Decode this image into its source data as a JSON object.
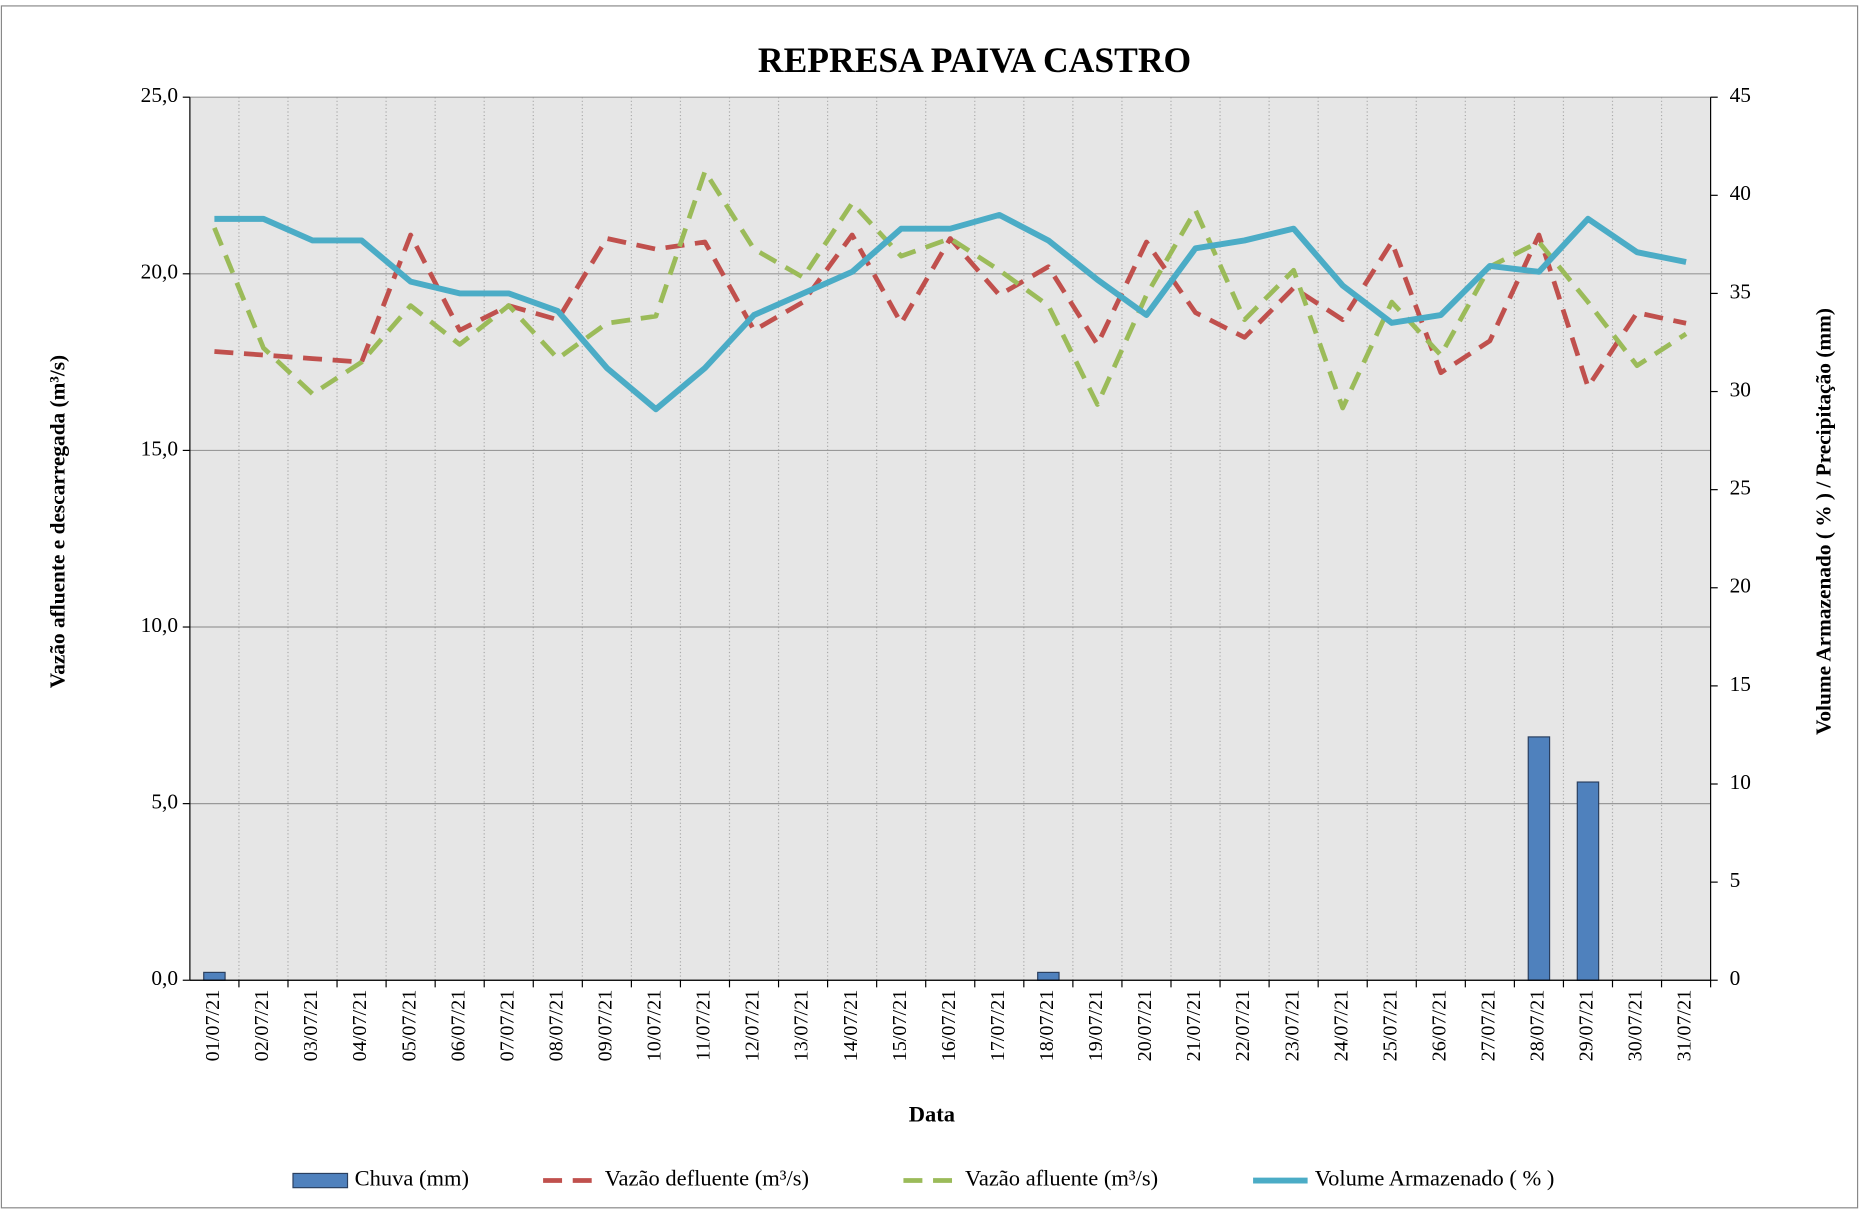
{
  "chart_data": {
    "type": "combo",
    "title": "REPRESA PAIVA CASTRO",
    "x_label": "Data",
    "y_label": "Vazão afluente e descarregada (m³/s)",
    "y2_label": "Volume Armazenado ( % ) / Precipitação  (mm)",
    "categories": [
      "01/07/21",
      "02/07/21",
      "03/07/21",
      "04/07/21",
      "05/07/21",
      "06/07/21",
      "07/07/21",
      "08/07/21",
      "09/07/21",
      "10/07/21",
      "11/07/21",
      "12/07/21",
      "13/07/21",
      "14/07/21",
      "15/07/21",
      "16/07/21",
      "17/07/21",
      "18/07/21",
      "19/07/21",
      "20/07/21",
      "21/07/21",
      "22/07/21",
      "23/07/21",
      "24/07/21",
      "25/07/21",
      "26/07/21",
      "27/07/21",
      "28/07/21",
      "29/07/21",
      "30/07/21",
      "31/07/21"
    ],
    "ylim": [
      0,
      25
    ],
    "yticks": [
      {
        "value": 0,
        "label": "0,0"
      },
      {
        "value": 5,
        "label": "5,0"
      },
      {
        "value": 10,
        "label": "10,0"
      },
      {
        "value": 15,
        "label": "15,0"
      },
      {
        "value": 20,
        "label": "20,0"
      },
      {
        "value": 25,
        "label": "25,0"
      }
    ],
    "y2lim": [
      0,
      45
    ],
    "y2ticks": [
      0,
      5,
      10,
      15,
      20,
      25,
      30,
      35,
      40,
      45
    ],
    "grid": true,
    "legend": "bottom",
    "series": [
      {
        "name": "Chuva (mm)",
        "type": "bar",
        "axis": "y2",
        "color": "#4f81bd",
        "values": [
          0.4,
          0,
          0,
          0,
          0,
          0,
          0,
          0,
          0,
          0,
          0,
          0,
          0,
          0,
          0,
          0,
          0,
          0.4,
          0,
          0,
          0,
          0,
          0,
          0,
          0,
          0,
          0,
          12.4,
          10.1,
          0,
          0
        ]
      },
      {
        "name": "Vazão defluente (m³/s)",
        "type": "line",
        "style": "dashed",
        "color": "#c0504d",
        "values": [
          17.8,
          17.7,
          17.6,
          17.5,
          21.1,
          18.4,
          19.1,
          18.7,
          21.0,
          20.7,
          20.9,
          18.4,
          19.2,
          21.1,
          18.6,
          21.0,
          19.4,
          20.2,
          18.0,
          20.9,
          18.9,
          18.2,
          19.6,
          18.7,
          20.9,
          17.2,
          18.1,
          21.1,
          16.8,
          18.9,
          18.6
        ]
      },
      {
        "name": "Vazão afluente (m³/s)",
        "type": "line",
        "style": "dashed",
        "color": "#9bbb59",
        "values": [
          21.3,
          17.9,
          16.6,
          17.5,
          19.1,
          18.0,
          19.1,
          17.6,
          18.6,
          18.8,
          22.9,
          20.7,
          19.9,
          22.0,
          20.5,
          21.0,
          20.1,
          19.1,
          16.3,
          19.4,
          21.8,
          18.7,
          20.1,
          16.2,
          19.2,
          17.7,
          20.2,
          20.9,
          19.2,
          17.4,
          18.3
        ]
      },
      {
        "name": "Volume Armazenado ( % )",
        "type": "line",
        "style": "solid",
        "axis": "y2",
        "color": "#4bacc6",
        "values": [
          38.8,
          38.8,
          37.7,
          37.7,
          35.6,
          35.0,
          35.0,
          34.1,
          31.2,
          29.1,
          31.2,
          33.9,
          35.0,
          36.1,
          38.3,
          38.3,
          39.0,
          37.7,
          35.7,
          33.9,
          37.3,
          37.7,
          38.3,
          35.4,
          33.5,
          33.9,
          36.4,
          36.1,
          38.8,
          37.1,
          36.6
        ]
      }
    ]
  }
}
